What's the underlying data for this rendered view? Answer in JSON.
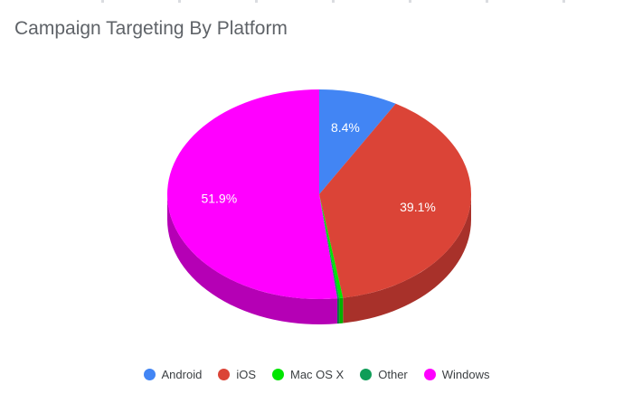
{
  "chart_data": {
    "type": "pie",
    "title": "Campaign Targeting By Platform",
    "three_d": true,
    "start_angle_deg": 0,
    "legend_position": "bottom",
    "slices": [
      {
        "name": "Android",
        "value": 8.4,
        "label": "8.4%",
        "color": "#4285f4",
        "side_color": "#3a74d0"
      },
      {
        "name": "iOS",
        "value": 39.1,
        "label": "39.1%",
        "color": "#db4437",
        "side_color": "#a8312a"
      },
      {
        "name": "Mac OS X",
        "value": 0.4,
        "label": "",
        "color": "#00e600",
        "side_color": "#00b000"
      },
      {
        "name": "Other",
        "value": 0.2,
        "label": "",
        "color": "#0f9d58",
        "side_color": "#0b7a44"
      },
      {
        "name": "Windows",
        "value": 51.9,
        "label": "51.9%",
        "color": "#ff00ff",
        "side_color": "#b500b5"
      }
    ]
  }
}
